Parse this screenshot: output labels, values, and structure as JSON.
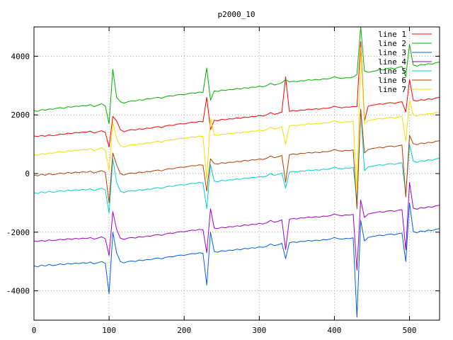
{
  "chart_data": {
    "type": "line",
    "title": "p2000_10",
    "xlabel": "",
    "ylabel": "",
    "xlim": [
      0,
      540
    ],
    "ylim": [
      -5000,
      5000
    ],
    "x_ticks": [
      0,
      100,
      200,
      300,
      400,
      500
    ],
    "y_ticks": [
      -4000,
      -2000,
      0,
      2000,
      4000
    ],
    "grid": true,
    "legend_position": "top-right",
    "x_step": 5,
    "series": [
      {
        "name": "line 1",
        "color": "#ff0000",
        "values": [
          1280,
          1260,
          1300,
          1270,
          1320,
          1290,
          1310,
          1350,
          1330,
          1380,
          1360,
          1400,
          1390,
          1420,
          1410,
          1450,
          1380,
          1420,
          1460,
          1400,
          900,
          1950,
          1800,
          1500,
          1420,
          1470,
          1500,
          1480,
          1530,
          1510,
          1550,
          1540,
          1580,
          1600,
          1570,
          1620,
          1650,
          1640,
          1680,
          1700,
          1690,
          1720,
          1750,
          1740,
          1780,
          1760,
          2600,
          1500,
          1820,
          1800,
          1850,
          1830,
          1870,
          1860,
          1900,
          1880,
          1930,
          1910,
          1950,
          1940,
          1980,
          1960,
          2000,
          2080,
          2020,
          2050,
          2100,
          3300,
          2120,
          2150,
          2130,
          2170,
          2160,
          2200,
          2180,
          2210,
          2190,
          2230,
          2220,
          2250,
          2300,
          2260,
          2240,
          2270,
          2260,
          2290,
          2280,
          4500,
          1800,
          2300,
          2330,
          2350,
          2380,
          2360,
          2400,
          2420,
          2390,
          2430,
          2450,
          2100,
          3200,
          2500,
          2470,
          2520,
          2500,
          2550,
          2530,
          2580,
          2600
        ]
      },
      {
        "name": "line 2",
        "color": "#00b000",
        "values": [
          2150,
          2120,
          2180,
          2160,
          2200,
          2190,
          2230,
          2250,
          2220,
          2280,
          2260,
          2300,
          2290,
          2320,
          2310,
          2350,
          2280,
          2330,
          2380,
          2300,
          1700,
          3550,
          2600,
          2450,
          2400,
          2450,
          2480,
          2470,
          2520,
          2500,
          2550,
          2540,
          2580,
          2600,
          2570,
          2620,
          2650,
          2640,
          2680,
          2700,
          2690,
          2720,
          2750,
          2740,
          2780,
          2760,
          3600,
          2500,
          2820,
          2800,
          2850,
          2830,
          2870,
          2860,
          2900,
          2880,
          2930,
          2910,
          2950,
          2940,
          2980,
          2960,
          3000,
          3080,
          3020,
          3050,
          3100,
          3200,
          3120,
          3150,
          3130,
          3170,
          3160,
          3200,
          3180,
          3210,
          3190,
          3230,
          3220,
          3250,
          3300,
          3260,
          3240,
          3270,
          3260,
          3290,
          3380,
          5000,
          3500,
          3450,
          3480,
          3500,
          3550,
          3530,
          3580,
          3600,
          3570,
          3620,
          3650,
          3300,
          4400,
          3700,
          3660,
          3720,
          3700,
          3750,
          3730,
          3780,
          3800
        ]
      },
      {
        "name": "line 3",
        "color": "#0060e0",
        "values": [
          -3150,
          -3180,
          -3120,
          -3160,
          -3100,
          -3140,
          -3120,
          -3080,
          -3110,
          -3060,
          -3090,
          -3050,
          -3070,
          -3040,
          -3060,
          -3020,
          -3080,
          -3040,
          -3000,
          -3060,
          -4100,
          -2000,
          -2700,
          -3000,
          -3050,
          -3000,
          -2980,
          -3000,
          -2950,
          -2970,
          -2930,
          -2940,
          -2900,
          -2880,
          -2910,
          -2860,
          -2830,
          -2840,
          -2800,
          -2780,
          -2790,
          -2760,
          -2730,
          -2740,
          -2700,
          -2720,
          -3800,
          -2000,
          -2660,
          -2680,
          -2630,
          -2650,
          -2610,
          -2620,
          -2580,
          -2600,
          -2550,
          -2570,
          -2530,
          -2540,
          -2500,
          -2520,
          -2480,
          -2400,
          -2460,
          -2430,
          -2380,
          -2900,
          -2360,
          -2330,
          -2350,
          -2310,
          -2320,
          -2280,
          -2300,
          -2270,
          -2290,
          -2250,
          -2260,
          -2230,
          -2180,
          -2220,
          -2240,
          -2210,
          -2220,
          -2190,
          -4900,
          -1600,
          -2300,
          -2180,
          -2150,
          -2130,
          -2100,
          -2120,
          -2080,
          -2060,
          -2090,
          -2050,
          -2030,
          -3000,
          -1000,
          -1980,
          -2020,
          -1960,
          -1980,
          -1930,
          -1950,
          -1900,
          -1880
        ]
      },
      {
        "name": "line 4",
        "color": "#a000c8",
        "values": [
          -2300,
          -2320,
          -2280,
          -2310,
          -2260,
          -2290,
          -2270,
          -2240,
          -2260,
          -2220,
          -2250,
          -2210,
          -2230,
          -2200,
          -2220,
          -2180,
          -2240,
          -2200,
          -2160,
          -2220,
          -2800,
          -1300,
          -1900,
          -2200,
          -2250,
          -2200,
          -2180,
          -2200,
          -2150,
          -2170,
          -2130,
          -2140,
          -2100,
          -2080,
          -2110,
          -2060,
          -2030,
          -2040,
          -2000,
          -1980,
          -1990,
          -1960,
          -1930,
          -1940,
          -1900,
          -1920,
          -2700,
          -1200,
          -1860,
          -1880,
          -1830,
          -1850,
          -1810,
          -1820,
          -1780,
          -1800,
          -1750,
          -1770,
          -1730,
          -1740,
          -1700,
          -1720,
          -1680,
          -1600,
          -1660,
          -1630,
          -1580,
          -2600,
          -1560,
          -1530,
          -1550,
          -1510,
          -1520,
          -1480,
          -1500,
          -1470,
          -1490,
          -1450,
          -1460,
          -1430,
          -1380,
          -1420,
          -1440,
          -1410,
          -1420,
          -1390,
          -3300,
          -900,
          -1500,
          -1380,
          -1350,
          -1330,
          -1300,
          -1320,
          -1280,
          -1260,
          -1290,
          -1250,
          -1230,
          -2600,
          -300,
          -1180,
          -1220,
          -1160,
          -1180,
          -1130,
          -1150,
          -1100,
          -1080
        ]
      },
      {
        "name": "line 5",
        "color": "#00d0d0",
        "values": [
          -650,
          -680,
          -620,
          -660,
          -600,
          -640,
          -620,
          -580,
          -610,
          -560,
          -590,
          -550,
          -570,
          -540,
          -560,
          -520,
          -580,
          -540,
          -500,
          -560,
          -1350,
          500,
          -300,
          -600,
          -650,
          -600,
          -580,
          -600,
          -550,
          -570,
          -530,
          -540,
          -500,
          -480,
          -510,
          -460,
          -430,
          -440,
          -400,
          -380,
          -390,
          -360,
          -330,
          -340,
          -300,
          -320,
          -1200,
          300,
          -260,
          -280,
          -230,
          -250,
          -210,
          -220,
          -180,
          -200,
          -150,
          -170,
          -130,
          -140,
          -100,
          -120,
          -80,
          0,
          -60,
          -30,
          20,
          -500,
          40,
          70,
          50,
          90,
          80,
          120,
          100,
          130,
          110,
          150,
          140,
          170,
          220,
          180,
          160,
          190,
          180,
          210,
          -900,
          2200,
          100,
          220,
          250,
          270,
          300,
          280,
          320,
          340,
          310,
          350,
          370,
          -700,
          1000,
          420,
          380,
          440,
          420,
          470,
          450,
          500,
          520
        ]
      },
      {
        "name": "line 6",
        "color": "#b04000",
        "values": [
          -50,
          -80,
          -20,
          -60,
          0,
          -40,
          -20,
          20,
          -10,
          40,
          10,
          50,
          30,
          60,
          40,
          80,
          20,
          60,
          100,
          40,
          -1000,
          700,
          300,
          0,
          -50,
          0,
          20,
          0,
          50,
          30,
          70,
          60,
          100,
          120,
          90,
          140,
          170,
          160,
          200,
          220,
          210,
          240,
          270,
          260,
          300,
          280,
          -600,
          500,
          340,
          320,
          370,
          350,
          390,
          380,
          420,
          400,
          450,
          430,
          470,
          460,
          500,
          480,
          520,
          600,
          540,
          570,
          620,
          -300,
          640,
          670,
          650,
          690,
          680,
          720,
          700,
          730,
          710,
          750,
          740,
          770,
          820,
          780,
          760,
          790,
          780,
          810,
          -1200,
          2200,
          700,
          820,
          850,
          870,
          900,
          880,
          920,
          940,
          910,
          950,
          970,
          -800,
          1300,
          1020,
          980,
          1040,
          1020,
          1070,
          1050,
          1100,
          1120
        ]
      },
      {
        "name": "line 7",
        "color": "#f0e000",
        "values": [
          650,
          620,
          680,
          660,
          700,
          690,
          730,
          750,
          720,
          780,
          760,
          800,
          790,
          820,
          810,
          850,
          780,
          830,
          880,
          800,
          100,
          1750,
          1200,
          950,
          900,
          950,
          980,
          970,
          1020,
          1000,
          1050,
          1040,
          1080,
          1100,
          1070,
          1120,
          1150,
          1140,
          1180,
          1200,
          1190,
          1220,
          1250,
          1240,
          1280,
          1260,
          -200,
          1900,
          1320,
          1300,
          1350,
          1330,
          1370,
          1360,
          1400,
          1380,
          1430,
          1410,
          1450,
          1440,
          1480,
          1460,
          1500,
          1580,
          1520,
          1550,
          1600,
          1000,
          1620,
          1650,
          1630,
          1670,
          1660,
          1700,
          1680,
          1710,
          1690,
          1730,
          1720,
          1750,
          1800,
          1760,
          1740,
          1770,
          1760,
          1790,
          -600,
          4300,
          1700,
          1800,
          1830,
          1850,
          1880,
          1860,
          1900,
          1920,
          1890,
          1930,
          1950,
          1100,
          2500,
          2000,
          1960,
          2020,
          2000,
          2050,
          2030,
          2080,
          2100
        ]
      }
    ]
  }
}
